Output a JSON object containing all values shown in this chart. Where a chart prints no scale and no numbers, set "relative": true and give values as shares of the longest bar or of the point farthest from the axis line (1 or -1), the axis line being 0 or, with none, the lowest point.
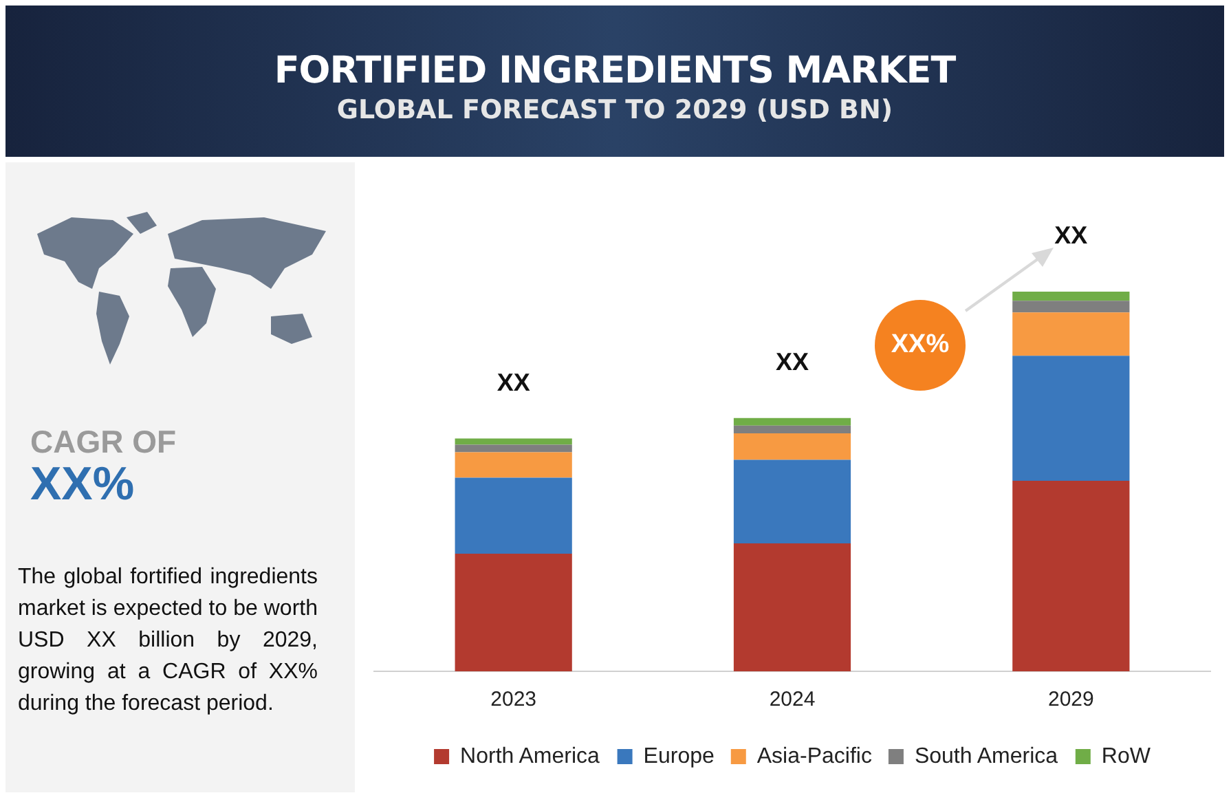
{
  "chart_data": {
    "type": "bar",
    "title": "FORTIFIED INGREDIENTS MARKET",
    "subtitle": "GLOBAL FORECAST TO 2029 (USD BN)",
    "categories": [
      "2023",
      "2024",
      "2029"
    ],
    "stacked": true,
    "relative": true,
    "legend": "bottom",
    "grid": false,
    "series": [
      {
        "name": "North America",
        "color": "#b33a2f",
        "values": [
          0.31,
          0.337,
          0.502
        ]
      },
      {
        "name": "Europe",
        "color": "#3a78bd",
        "values": [
          0.2,
          0.22,
          0.329
        ]
      },
      {
        "name": "Asia-Pacific",
        "color": "#f79a42",
        "values": [
          0.067,
          0.07,
          0.114
        ]
      },
      {
        "name": "South America",
        "color": "#7f7f7f",
        "values": [
          0.02,
          0.02,
          0.031
        ]
      },
      {
        "name": "RoW",
        "color": "#70ad47",
        "values": [
          0.016,
          0.02,
          0.024
        ]
      }
    ],
    "totals": [
      "XX",
      "XX",
      "XX"
    ],
    "annotations": [
      "XX%",
      "CAGR OF",
      "XX%",
      "The global fortified ingredients market is expected to be worth USD XX billion by 2029, growing at a CAGR of XX% during the forecast period."
    ]
  }
}
